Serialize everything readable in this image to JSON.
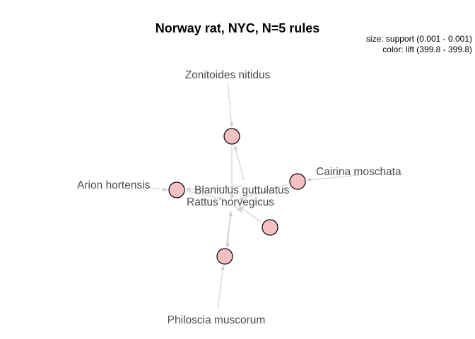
{
  "title": "Norway rat, NYC, N=5 rules",
  "legend": {
    "size": "size: support (0.001 - 0.001)",
    "color": "color: lift (399.8 - 399.8)"
  },
  "colors": {
    "rule_fill": "#f4c0c2",
    "edge": "#cfcfcf",
    "label": "#4d4d4d"
  },
  "graph": {
    "items": [
      {
        "id": "zonitoides",
        "label": "Zonitoides nitidus"
      },
      {
        "id": "cairina",
        "label": "Cairina moschata"
      },
      {
        "id": "arion",
        "label": "Arion hortensis"
      },
      {
        "id": "blaniulus",
        "label": "Blaniulus guttulatus"
      },
      {
        "id": "rattus",
        "label": "Rattus norvegicus"
      },
      {
        "id": "philoscia",
        "label": "Philoscia muscorum"
      }
    ],
    "rules": [
      {
        "id": "r1",
        "lhs": [
          "zonitoides"
        ],
        "rhs": [
          "rattus"
        ]
      },
      {
        "id": "r2",
        "lhs": [
          "cairina"
        ],
        "rhs": [
          "rattus"
        ]
      },
      {
        "id": "r3",
        "lhs": [
          "arion"
        ],
        "rhs": [
          "rattus"
        ]
      },
      {
        "id": "r4",
        "lhs": [
          "blaniulus"
        ],
        "rhs": [
          "rattus"
        ]
      },
      {
        "id": "r5",
        "lhs": [
          "philoscia"
        ],
        "rhs": [
          "rattus"
        ]
      }
    ]
  }
}
